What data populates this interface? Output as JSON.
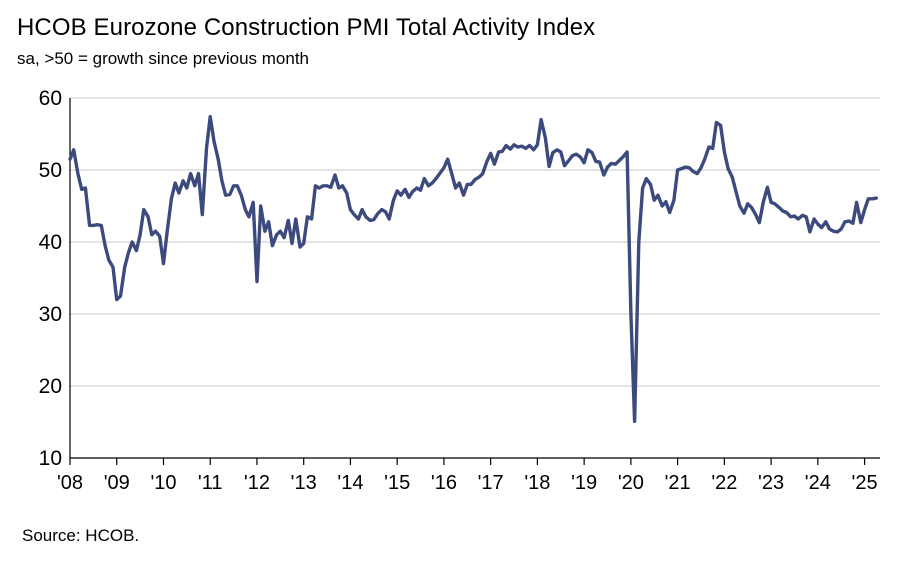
{
  "chart_data": {
    "type": "line",
    "title": "HCOB Eurozone Construction PMI Total Activity Index",
    "subtitle": "sa, >50 = growth since previous month",
    "source": "Source: HCOB.",
    "xlabel": "",
    "ylabel": "",
    "ylim": [
      10,
      60
    ],
    "yticks": [
      10,
      20,
      30,
      40,
      50,
      60
    ],
    "xlim": [
      2008,
      2025.33
    ],
    "xticks": [
      {
        "x": 2008,
        "label": "'08"
      },
      {
        "x": 2009,
        "label": "'09"
      },
      {
        "x": 2010,
        "label": "'10"
      },
      {
        "x": 2011,
        "label": "'11"
      },
      {
        "x": 2012,
        "label": "'12"
      },
      {
        "x": 2013,
        "label": "'13"
      },
      {
        "x": 2014,
        "label": "'14"
      },
      {
        "x": 2015,
        "label": "'15"
      },
      {
        "x": 2016,
        "label": "'16"
      },
      {
        "x": 2017,
        "label": "'17"
      },
      {
        "x": 2018,
        "label": "'18"
      },
      {
        "x": 2019,
        "label": "'19"
      },
      {
        "x": 2020,
        "label": "'20"
      },
      {
        "x": 2021,
        "label": "'21"
      },
      {
        "x": 2022,
        "label": "'22"
      },
      {
        "x": 2023,
        "label": "'23"
      },
      {
        "x": 2024,
        "label": "'24"
      },
      {
        "x": 2025,
        "label": "'25"
      }
    ],
    "grid": true,
    "legend": "none",
    "line_color": "#3d4a7e",
    "series": [
      {
        "x": [
          2008.0,
          2008.08,
          2008.17,
          2008.25,
          2008.33,
          2008.42,
          2008.5,
          2008.58,
          2008.67,
          2008.75,
          2008.83,
          2008.92,
          2009.0,
          2009.08,
          2009.17,
          2009.25,
          2009.33,
          2009.42,
          2009.5,
          2009.58,
          2009.67,
          2009.75,
          2009.83,
          2009.92,
          2010.0,
          2010.08,
          2010.17,
          2010.25,
          2010.33,
          2010.42,
          2010.5,
          2010.58,
          2010.67,
          2010.75,
          2010.83,
          2010.92,
          2011.0,
          2011.08,
          2011.17,
          2011.25,
          2011.33,
          2011.42,
          2011.5,
          2011.58,
          2011.67,
          2011.75,
          2011.83,
          2011.92,
          2012.0,
          2012.08,
          2012.17,
          2012.25,
          2012.33,
          2012.42,
          2012.5,
          2012.58,
          2012.67,
          2012.75,
          2012.83,
          2012.92,
          2013.0,
          2013.08,
          2013.17,
          2013.25,
          2013.33,
          2013.42,
          2013.5,
          2013.58,
          2013.67,
          2013.75,
          2013.83,
          2013.92,
          2014.0,
          2014.08,
          2014.17,
          2014.25,
          2014.33,
          2014.42,
          2014.5,
          2014.58,
          2014.67,
          2014.75,
          2014.83,
          2014.92,
          2015.0,
          2015.08,
          2015.17,
          2015.25,
          2015.33,
          2015.42,
          2015.5,
          2015.58,
          2015.67,
          2015.75,
          2015.83,
          2015.92,
          2016.0,
          2016.08,
          2016.17,
          2016.25,
          2016.33,
          2016.42,
          2016.5,
          2016.58,
          2016.67,
          2016.75,
          2016.83,
          2016.92,
          2017.0,
          2017.08,
          2017.17,
          2017.25,
          2017.33,
          2017.42,
          2017.5,
          2017.58,
          2017.67,
          2017.75,
          2017.83,
          2017.92,
          2018.0,
          2018.08,
          2018.17,
          2018.25,
          2018.33,
          2018.42,
          2018.5,
          2018.58,
          2018.67,
          2018.75,
          2018.83,
          2018.92,
          2019.0,
          2019.08,
          2019.17,
          2019.25,
          2019.33,
          2019.42,
          2019.5,
          2019.58,
          2019.67,
          2019.75,
          2019.83,
          2019.92,
          2020.0,
          2020.08,
          2020.17,
          2020.25,
          2020.33,
          2020.42,
          2020.5,
          2020.58,
          2020.67,
          2020.75,
          2020.83,
          2020.92,
          2021.0,
          2021.08,
          2021.17,
          2021.25,
          2021.33,
          2021.42,
          2021.5,
          2021.58,
          2021.67,
          2021.75,
          2021.83,
          2021.92,
          2022.0,
          2022.08,
          2022.17,
          2022.25,
          2022.33,
          2022.42,
          2022.5,
          2022.58,
          2022.67,
          2022.75,
          2022.83,
          2022.92,
          2023.0,
          2023.08,
          2023.17,
          2023.25,
          2023.33,
          2023.42,
          2023.5,
          2023.58,
          2023.67,
          2023.75,
          2023.83,
          2023.92,
          2024.0,
          2024.08,
          2024.17,
          2024.25,
          2024.33,
          2024.42,
          2024.5,
          2024.58,
          2024.67,
          2024.75,
          2024.83,
          2024.92,
          2025.0,
          2025.08,
          2025.17,
          2025.25
        ],
        "values": [
          51.5,
          52.8,
          49.5,
          47.3,
          47.5,
          42.3,
          42.3,
          42.4,
          42.3,
          39.5,
          37.5,
          36.5,
          32.0,
          32.5,
          36.5,
          38.5,
          40.0,
          38.8,
          41.0,
          44.5,
          43.5,
          41.0,
          41.5,
          40.8,
          37.0,
          41.5,
          46.0,
          48.2,
          46.8,
          48.5,
          47.5,
          49.5,
          47.8,
          49.5,
          43.8,
          53.0,
          57.4,
          54.0,
          51.5,
          48.5,
          46.5,
          46.6,
          47.8,
          47.8,
          46.4,
          44.5,
          43.5,
          45.5,
          34.5,
          45.0,
          41.5,
          42.8,
          39.5,
          41.0,
          41.5,
          40.6,
          43.0,
          39.8,
          43.2,
          39.3,
          39.8,
          43.5,
          43.2,
          47.8,
          47.5,
          47.8,
          47.8,
          47.6,
          49.3,
          47.5,
          47.8,
          46.8,
          44.5,
          43.8,
          43.2,
          44.5,
          43.5,
          43.0,
          43.1,
          43.9,
          44.5,
          44.2,
          43.2,
          45.8,
          47.1,
          46.5,
          47.3,
          46.2,
          47.0,
          47.5,
          47.2,
          48.8,
          47.8,
          48.2,
          48.8,
          49.6,
          50.3,
          51.5,
          49.4,
          47.5,
          48.2,
          46.5,
          48.0,
          48.0,
          48.7,
          49.0,
          49.5,
          51.2,
          52.3,
          50.8,
          52.5,
          52.6,
          53.4,
          52.9,
          53.5,
          53.2,
          53.3,
          53.0,
          53.4,
          52.8,
          53.5,
          57.0,
          54.5,
          50.5,
          52.4,
          52.8,
          52.5,
          50.6,
          51.3,
          52.0,
          52.2,
          51.8,
          51.0,
          52.8,
          52.4,
          51.2,
          51.1,
          49.3,
          50.4,
          50.9,
          50.8,
          51.3,
          51.8,
          52.5,
          30.0,
          15.1,
          40.0,
          47.5,
          48.8,
          48.0,
          45.8,
          46.5,
          45.0,
          45.6,
          44.1,
          45.8,
          50.0,
          50.2,
          50.4,
          50.3,
          49.8,
          49.5,
          50.3,
          51.5,
          53.2,
          53.0,
          56.6,
          56.2,
          52.5,
          50.2,
          49.0,
          47.0,
          45.0,
          44.0,
          45.3,
          44.8,
          43.8,
          42.7,
          45.5,
          47.6,
          45.5,
          45.3,
          44.8,
          44.3,
          44.1,
          43.5,
          43.6,
          43.2,
          43.7,
          43.5,
          41.4,
          43.2,
          42.5,
          42.0,
          42.8,
          41.8,
          41.5,
          41.4,
          41.8,
          42.8,
          42.9,
          42.6,
          45.5,
          42.7,
          44.5,
          46.0,
          46.0,
          46.1
        ]
      }
    ]
  }
}
